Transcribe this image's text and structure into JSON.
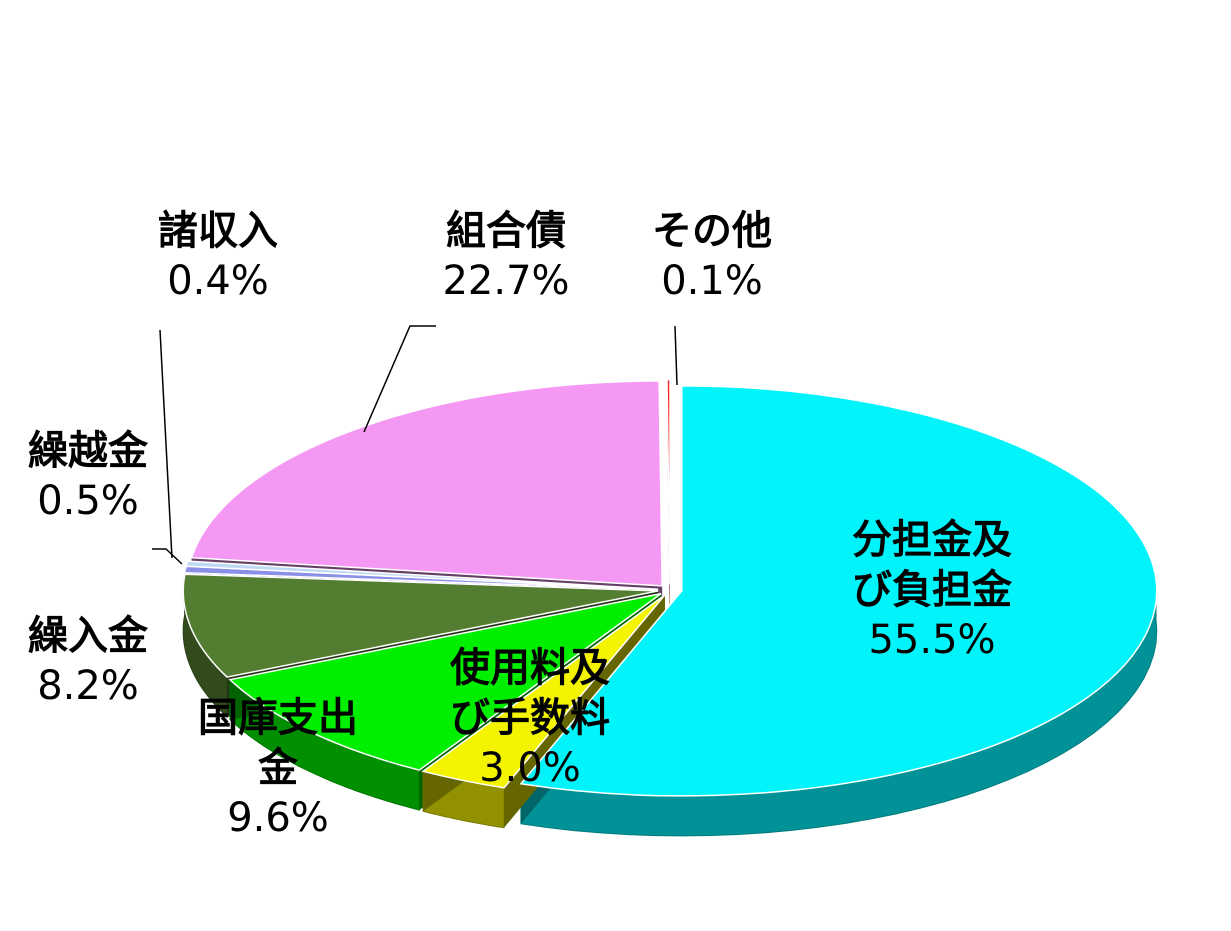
{
  "chart_data": {
    "type": "pie",
    "style": "3d-exploded",
    "title": "",
    "slices": [
      {
        "name": "分担金及び負担金",
        "name_lines": [
          "分担金及",
          "び負担金"
        ],
        "value": 55.5,
        "value_label": "55.5%",
        "color": "#00F4FA"
      },
      {
        "name": "使用料及び手数料",
        "name_lines": [
          "使用料及",
          "び手数料"
        ],
        "value": 3.0,
        "value_label": "3.0%",
        "color": "#F4F400"
      },
      {
        "name": "国庫支出金",
        "name_lines": [
          "国庫支出",
          "金"
        ],
        "value": 9.6,
        "value_label": "9.6%",
        "color": "#00EE00"
      },
      {
        "name": "繰入金",
        "name_lines": [
          "繰入金"
        ],
        "value": 8.2,
        "value_label": "8.2%",
        "color": "#537D30"
      },
      {
        "name": "繰越金",
        "name_lines": [
          "繰越金"
        ],
        "value": 0.5,
        "value_label": "0.5%",
        "color": "#8A8FE8"
      },
      {
        "name": "諸収入",
        "name_lines": [
          "諸収入"
        ],
        "value": 0.4,
        "value_label": "0.4%",
        "color": "#BFD9F4"
      },
      {
        "name": "組合債",
        "name_lines": [
          "組合債"
        ],
        "value": 22.7,
        "value_label": "22.7%",
        "color": "#F498F4"
      },
      {
        "name": "その他",
        "name_lines": [
          "その他"
        ],
        "value": 0.1,
        "value_label": "0.1%",
        "color": "#FF2020"
      }
    ],
    "legend": "none",
    "data_labels": "outside-and-inside"
  }
}
